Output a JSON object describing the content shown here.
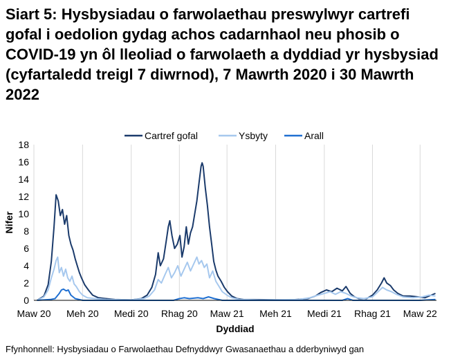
{
  "title": "Siart 5: Hysbysiadau o farwolaethau preswylwyr cartrefi gofal i oedolion gydag achos cadarnhaol neu phosib o COVID-19 yn ôl lleoliad o farwolaeth a dyddiad yr hysbysiad (cyfartaledd treigl 7 diwrnod), 7 Mawrth 2020 i 30 Mawrth 2022",
  "source": "Ffynhonnell: Hysbysiadau o Farwolaethau Defnyddwyr Gwasanaethau a dderbyniwyd gan",
  "chart_data": {
    "type": "line",
    "xlabel": "Dyddiad",
    "ylabel": "Nifer",
    "ylim": [
      0,
      18
    ],
    "yticks": [
      0,
      2,
      4,
      6,
      8,
      10,
      12,
      14,
      16,
      18
    ],
    "xlim": [
      "2020-03-01",
      "2022-04-01"
    ],
    "xticks": [
      {
        "date": "2020-03-01",
        "label": "Maw 20"
      },
      {
        "date": "2020-06-01",
        "label": "Meh 20"
      },
      {
        "date": "2020-09-01",
        "label": "Medi 20"
      },
      {
        "date": "2020-12-01",
        "label": "Rhag 20"
      },
      {
        "date": "2021-03-01",
        "label": "Maw 21"
      },
      {
        "date": "2021-06-01",
        "label": "Meh 21"
      },
      {
        "date": "2021-09-01",
        "label": "Medi 21"
      },
      {
        "date": "2021-12-01",
        "label": "Rhag 21"
      },
      {
        "date": "2022-03-01",
        "label": "Maw 22"
      }
    ],
    "grid": "vertical",
    "legend": "top",
    "series": [
      {
        "name": "Cartref gofal",
        "color": "#1a3a6b",
        "points": [
          [
            "2020-03-07",
            0
          ],
          [
            "2020-03-20",
            0.5
          ],
          [
            "2020-03-28",
            1.8
          ],
          [
            "2020-04-03",
            4.5
          ],
          [
            "2020-04-08",
            8.5
          ],
          [
            "2020-04-12",
            12.2
          ],
          [
            "2020-04-16",
            11.5
          ],
          [
            "2020-04-20",
            9.8
          ],
          [
            "2020-04-24",
            10.5
          ],
          [
            "2020-04-28",
            8.8
          ],
          [
            "2020-05-02",
            9.8
          ],
          [
            "2020-05-06",
            7.5
          ],
          [
            "2020-05-10",
            6.5
          ],
          [
            "2020-05-14",
            5.8
          ],
          [
            "2020-05-18",
            4.8
          ],
          [
            "2020-05-22",
            4.0
          ],
          [
            "2020-05-26",
            3.2
          ],
          [
            "2020-05-30",
            2.6
          ],
          [
            "2020-06-05",
            1.8
          ],
          [
            "2020-06-12",
            1.2
          ],
          [
            "2020-06-20",
            0.6
          ],
          [
            "2020-07-01",
            0.3
          ],
          [
            "2020-07-15",
            0.2
          ],
          [
            "2020-08-01",
            0.1
          ],
          [
            "2020-09-01",
            0.05
          ],
          [
            "2020-09-20",
            0.2
          ],
          [
            "2020-10-01",
            0.6
          ],
          [
            "2020-10-10",
            1.5
          ],
          [
            "2020-10-17",
            3.0
          ],
          [
            "2020-10-22",
            5.5
          ],
          [
            "2020-10-26",
            4.0
          ],
          [
            "2020-11-01",
            4.8
          ],
          [
            "2020-11-06",
            6.8
          ],
          [
            "2020-11-10",
            8.5
          ],
          [
            "2020-11-13",
            9.2
          ],
          [
            "2020-11-17",
            7.5
          ],
          [
            "2020-11-22",
            6.0
          ],
          [
            "2020-11-27",
            6.5
          ],
          [
            "2020-12-02",
            7.5
          ],
          [
            "2020-12-06",
            5.0
          ],
          [
            "2020-12-10",
            6.2
          ],
          [
            "2020-12-14",
            8.5
          ],
          [
            "2020-12-18",
            6.5
          ],
          [
            "2020-12-22",
            7.8
          ],
          [
            "2020-12-26",
            8.5
          ],
          [
            "2020-12-30",
            10.0
          ],
          [
            "2021-01-03",
            11.5
          ],
          [
            "2021-01-07",
            13.5
          ],
          [
            "2021-01-11",
            15.5
          ],
          [
            "2021-01-13",
            15.9
          ],
          [
            "2021-01-15",
            15.5
          ],
          [
            "2021-01-19",
            13.0
          ],
          [
            "2021-01-23",
            11.0
          ],
          [
            "2021-01-27",
            8.5
          ],
          [
            "2021-01-31",
            6.5
          ],
          [
            "2021-02-04",
            4.5
          ],
          [
            "2021-02-08",
            3.5
          ],
          [
            "2021-02-12",
            2.8
          ],
          [
            "2021-02-18",
            2.2
          ],
          [
            "2021-02-24",
            1.5
          ],
          [
            "2021-03-02",
            1.0
          ],
          [
            "2021-03-10",
            0.5
          ],
          [
            "2021-03-20",
            0.2
          ],
          [
            "2021-04-01",
            0.1
          ],
          [
            "2021-07-01",
            0.05
          ],
          [
            "2021-08-01",
            0.2
          ],
          [
            "2021-08-15",
            0.5
          ],
          [
            "2021-08-25",
            0.9
          ],
          [
            "2021-09-05",
            1.2
          ],
          [
            "2021-09-15",
            1.0
          ],
          [
            "2021-09-25",
            1.4
          ],
          [
            "2021-10-05",
            1.1
          ],
          [
            "2021-10-12",
            1.6
          ],
          [
            "2021-10-20",
            0.8
          ],
          [
            "2021-10-28",
            0.4
          ],
          [
            "2021-11-05",
            0.2
          ],
          [
            "2021-11-20",
            0.2
          ],
          [
            "2021-12-01",
            0.6
          ],
          [
            "2021-12-10",
            1.2
          ],
          [
            "2021-12-18",
            2.0
          ],
          [
            "2021-12-23",
            2.6
          ],
          [
            "2021-12-28",
            2.0
          ],
          [
            "2022-01-04",
            1.7
          ],
          [
            "2022-01-10",
            1.2
          ],
          [
            "2022-01-18",
            0.8
          ],
          [
            "2022-01-28",
            0.5
          ],
          [
            "2022-02-10",
            0.5
          ],
          [
            "2022-02-25",
            0.4
          ],
          [
            "2022-03-10",
            0.3
          ],
          [
            "2022-03-22",
            0.6
          ],
          [
            "2022-03-30",
            0.8
          ]
        ]
      },
      {
        "name": "Ysbyty",
        "color": "#a6c8ee",
        "points": [
          [
            "2020-03-07",
            0
          ],
          [
            "2020-03-20",
            0.4
          ],
          [
            "2020-03-28",
            1.2
          ],
          [
            "2020-04-03",
            2.6
          ],
          [
            "2020-04-08",
            3.6
          ],
          [
            "2020-04-12",
            4.6
          ],
          [
            "2020-04-15",
            5.0
          ],
          [
            "2020-04-18",
            3.2
          ],
          [
            "2020-04-22",
            3.8
          ],
          [
            "2020-04-26",
            2.8
          ],
          [
            "2020-04-30",
            3.6
          ],
          [
            "2020-05-04",
            2.6
          ],
          [
            "2020-05-08",
            2.2
          ],
          [
            "2020-05-12",
            2.8
          ],
          [
            "2020-05-16",
            1.9
          ],
          [
            "2020-05-20",
            1.6
          ],
          [
            "2020-05-26",
            1.0
          ],
          [
            "2020-06-01",
            0.6
          ],
          [
            "2020-06-10",
            0.3
          ],
          [
            "2020-06-25",
            0.2
          ],
          [
            "2020-07-15",
            0.1
          ],
          [
            "2020-09-01",
            0.05
          ],
          [
            "2020-09-25",
            0.2
          ],
          [
            "2020-10-05",
            0.5
          ],
          [
            "2020-10-15",
            1.2
          ],
          [
            "2020-10-22",
            2.4
          ],
          [
            "2020-10-28",
            2.0
          ],
          [
            "2020-11-04",
            3.0
          ],
          [
            "2020-11-10",
            3.8
          ],
          [
            "2020-11-16",
            2.6
          ],
          [
            "2020-11-22",
            3.2
          ],
          [
            "2020-11-28",
            4.0
          ],
          [
            "2020-12-04",
            2.8
          ],
          [
            "2020-12-10",
            3.6
          ],
          [
            "2020-12-16",
            4.4
          ],
          [
            "2020-12-22",
            3.4
          ],
          [
            "2020-12-28",
            4.2
          ],
          [
            "2021-01-03",
            5.0
          ],
          [
            "2021-01-07",
            4.2
          ],
          [
            "2021-01-12",
            4.6
          ],
          [
            "2021-01-17",
            3.8
          ],
          [
            "2021-01-22",
            4.2
          ],
          [
            "2021-01-27",
            2.6
          ],
          [
            "2021-02-02",
            3.4
          ],
          [
            "2021-02-08",
            2.2
          ],
          [
            "2021-02-14",
            1.6
          ],
          [
            "2021-02-20",
            1.0
          ],
          [
            "2021-03-01",
            0.6
          ],
          [
            "2021-03-10",
            0.3
          ],
          [
            "2021-03-25",
            0.1
          ],
          [
            "2021-05-01",
            0.05
          ],
          [
            "2021-07-15",
            0.1
          ],
          [
            "2021-08-05",
            0.3
          ],
          [
            "2021-08-20",
            0.6
          ],
          [
            "2021-09-01",
            0.8
          ],
          [
            "2021-09-12",
            1.0
          ],
          [
            "2021-09-22",
            0.7
          ],
          [
            "2021-10-02",
            1.0
          ],
          [
            "2021-10-12",
            0.8
          ],
          [
            "2021-10-22",
            0.5
          ],
          [
            "2021-11-01",
            0.3
          ],
          [
            "2021-11-15",
            0.2
          ],
          [
            "2021-12-01",
            0.4
          ],
          [
            "2021-12-10",
            0.9
          ],
          [
            "2021-12-20",
            1.5
          ],
          [
            "2021-12-28",
            1.2
          ],
          [
            "2022-01-06",
            1.0
          ],
          [
            "2022-01-15",
            0.7
          ],
          [
            "2022-01-28",
            0.4
          ],
          [
            "2022-02-15",
            0.3
          ],
          [
            "2022-03-05",
            0.4
          ],
          [
            "2022-03-18",
            0.6
          ],
          [
            "2022-03-30",
            0.5
          ]
        ]
      },
      {
        "name": "Arall",
        "color": "#1f6fd1",
        "points": [
          [
            "2020-03-07",
            0
          ],
          [
            "2020-04-01",
            0.1
          ],
          [
            "2020-04-10",
            0.2
          ],
          [
            "2020-04-18",
            0.8
          ],
          [
            "2020-04-22",
            1.2
          ],
          [
            "2020-04-26",
            1.3
          ],
          [
            "2020-05-01",
            1.1
          ],
          [
            "2020-05-05",
            1.2
          ],
          [
            "2020-05-10",
            0.6
          ],
          [
            "2020-05-18",
            0.2
          ],
          [
            "2020-06-01",
            0
          ],
          [
            "2020-11-20",
            0
          ],
          [
            "2020-12-01",
            0.2
          ],
          [
            "2020-12-10",
            0.3
          ],
          [
            "2020-12-20",
            0.2
          ],
          [
            "2021-01-05",
            0.3
          ],
          [
            "2021-01-15",
            0.2
          ],
          [
            "2021-01-25",
            0.4
          ],
          [
            "2021-02-05",
            0.2
          ],
          [
            "2021-02-20",
            0
          ],
          [
            "2021-10-05",
            0
          ],
          [
            "2021-10-15",
            0.2
          ],
          [
            "2021-10-25",
            0
          ],
          [
            "2022-03-01",
            0
          ],
          [
            "2022-03-30",
            0.1
          ]
        ]
      }
    ]
  }
}
